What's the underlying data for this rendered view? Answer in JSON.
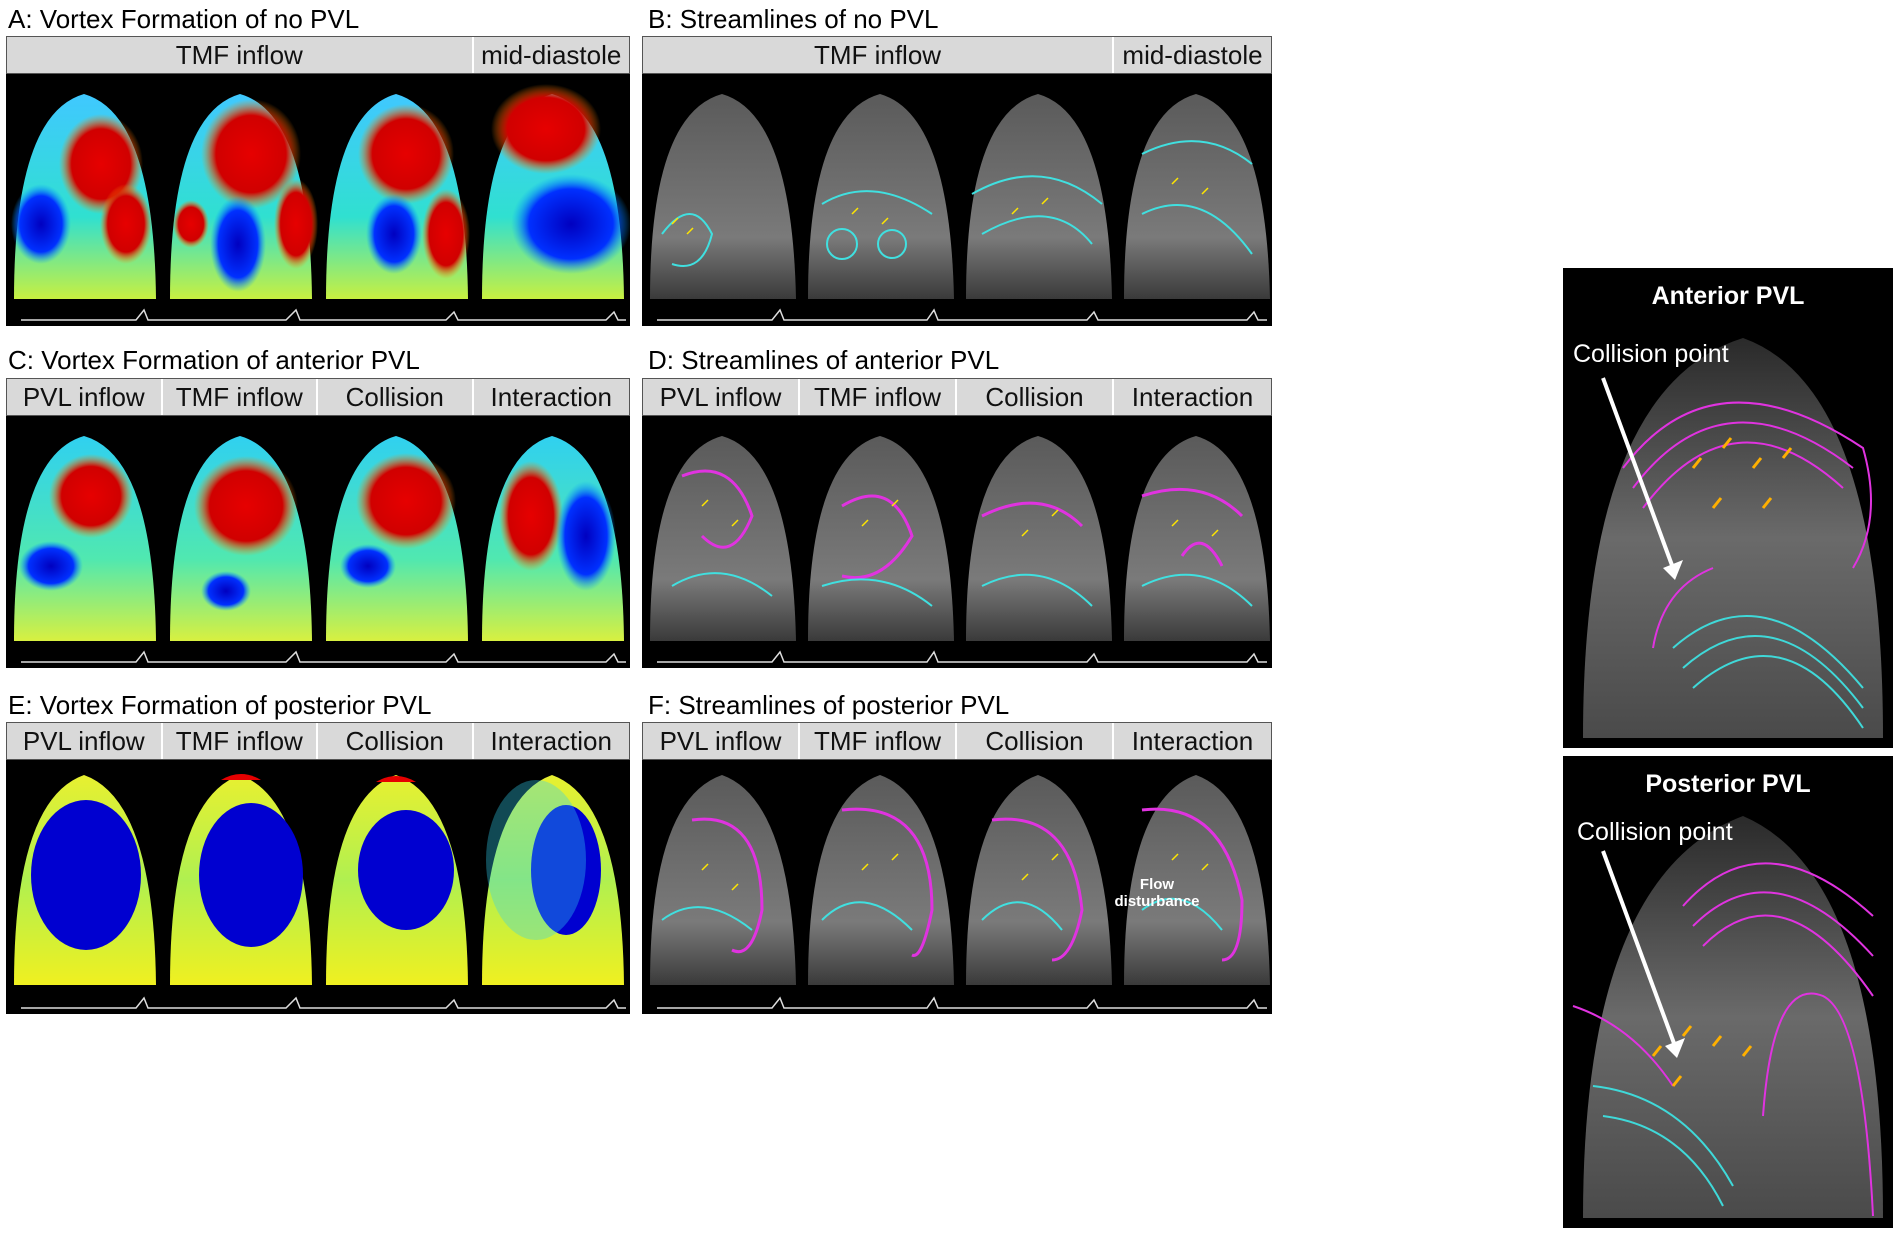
{
  "panels": {
    "A": {
      "title": "A: Vortex Formation of no PVL",
      "headers": [
        "TMF inflow",
        "mid-diastole"
      ]
    },
    "B": {
      "title": "B: Streamlines of no PVL",
      "headers": [
        "TMF inflow",
        "mid-diastole"
      ]
    },
    "C": {
      "title": "C: Vortex Formation of anterior PVL",
      "headers": [
        "PVL inflow",
        "TMF inflow",
        "Collision",
        "Interaction"
      ]
    },
    "D": {
      "title": "D: Streamlines of anterior PVL",
      "headers": [
        "PVL inflow",
        "TMF inflow",
        "Collision",
        "Interaction"
      ]
    },
    "E": {
      "title": "E: Vortex Formation of posterior PVL",
      "headers": [
        "PVL inflow",
        "TMF inflow",
        "Collision",
        "Interaction"
      ]
    },
    "F": {
      "title": "F: Streamlines of posterior PVL",
      "headers": [
        "PVL inflow",
        "TMF inflow",
        "Collision",
        "Interaction"
      ],
      "annotation": "Flow disturbance"
    }
  },
  "side": {
    "anterior": {
      "title": "Anterior PVL",
      "label": "Collision point"
    },
    "posterior": {
      "title": "Posterior PVL",
      "label": "Collision point"
    }
  },
  "colors": {
    "red": "#e60000",
    "blue": "#0000c8",
    "cyan": "#3fd9d9",
    "magenta": "#e033e0",
    "yellow": "#ffe600",
    "header": "#d9d9d9"
  }
}
